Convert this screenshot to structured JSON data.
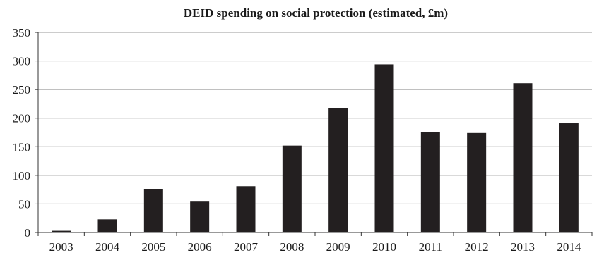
{
  "chart_data": {
    "type": "bar",
    "title": "DEID spending on social protection (estimated, £m)",
    "xlabel": "",
    "ylabel": "",
    "categories": [
      "2003",
      "2004",
      "2005",
      "2006",
      "2007",
      "2008",
      "2009",
      "2010",
      "2011",
      "2012",
      "2013",
      "2014"
    ],
    "values": [
      3,
      23,
      76,
      54,
      81,
      152,
      217,
      294,
      176,
      174,
      261,
      191
    ],
    "ylim": [
      0,
      350
    ],
    "yticks": [
      0,
      50,
      100,
      150,
      200,
      250,
      300,
      350
    ],
    "grid": true,
    "legend": "none",
    "colors": {
      "bar": "#231f20",
      "grid": "#9a9a9a",
      "axis": "#333333",
      "text": "#1a1a1a"
    }
  }
}
